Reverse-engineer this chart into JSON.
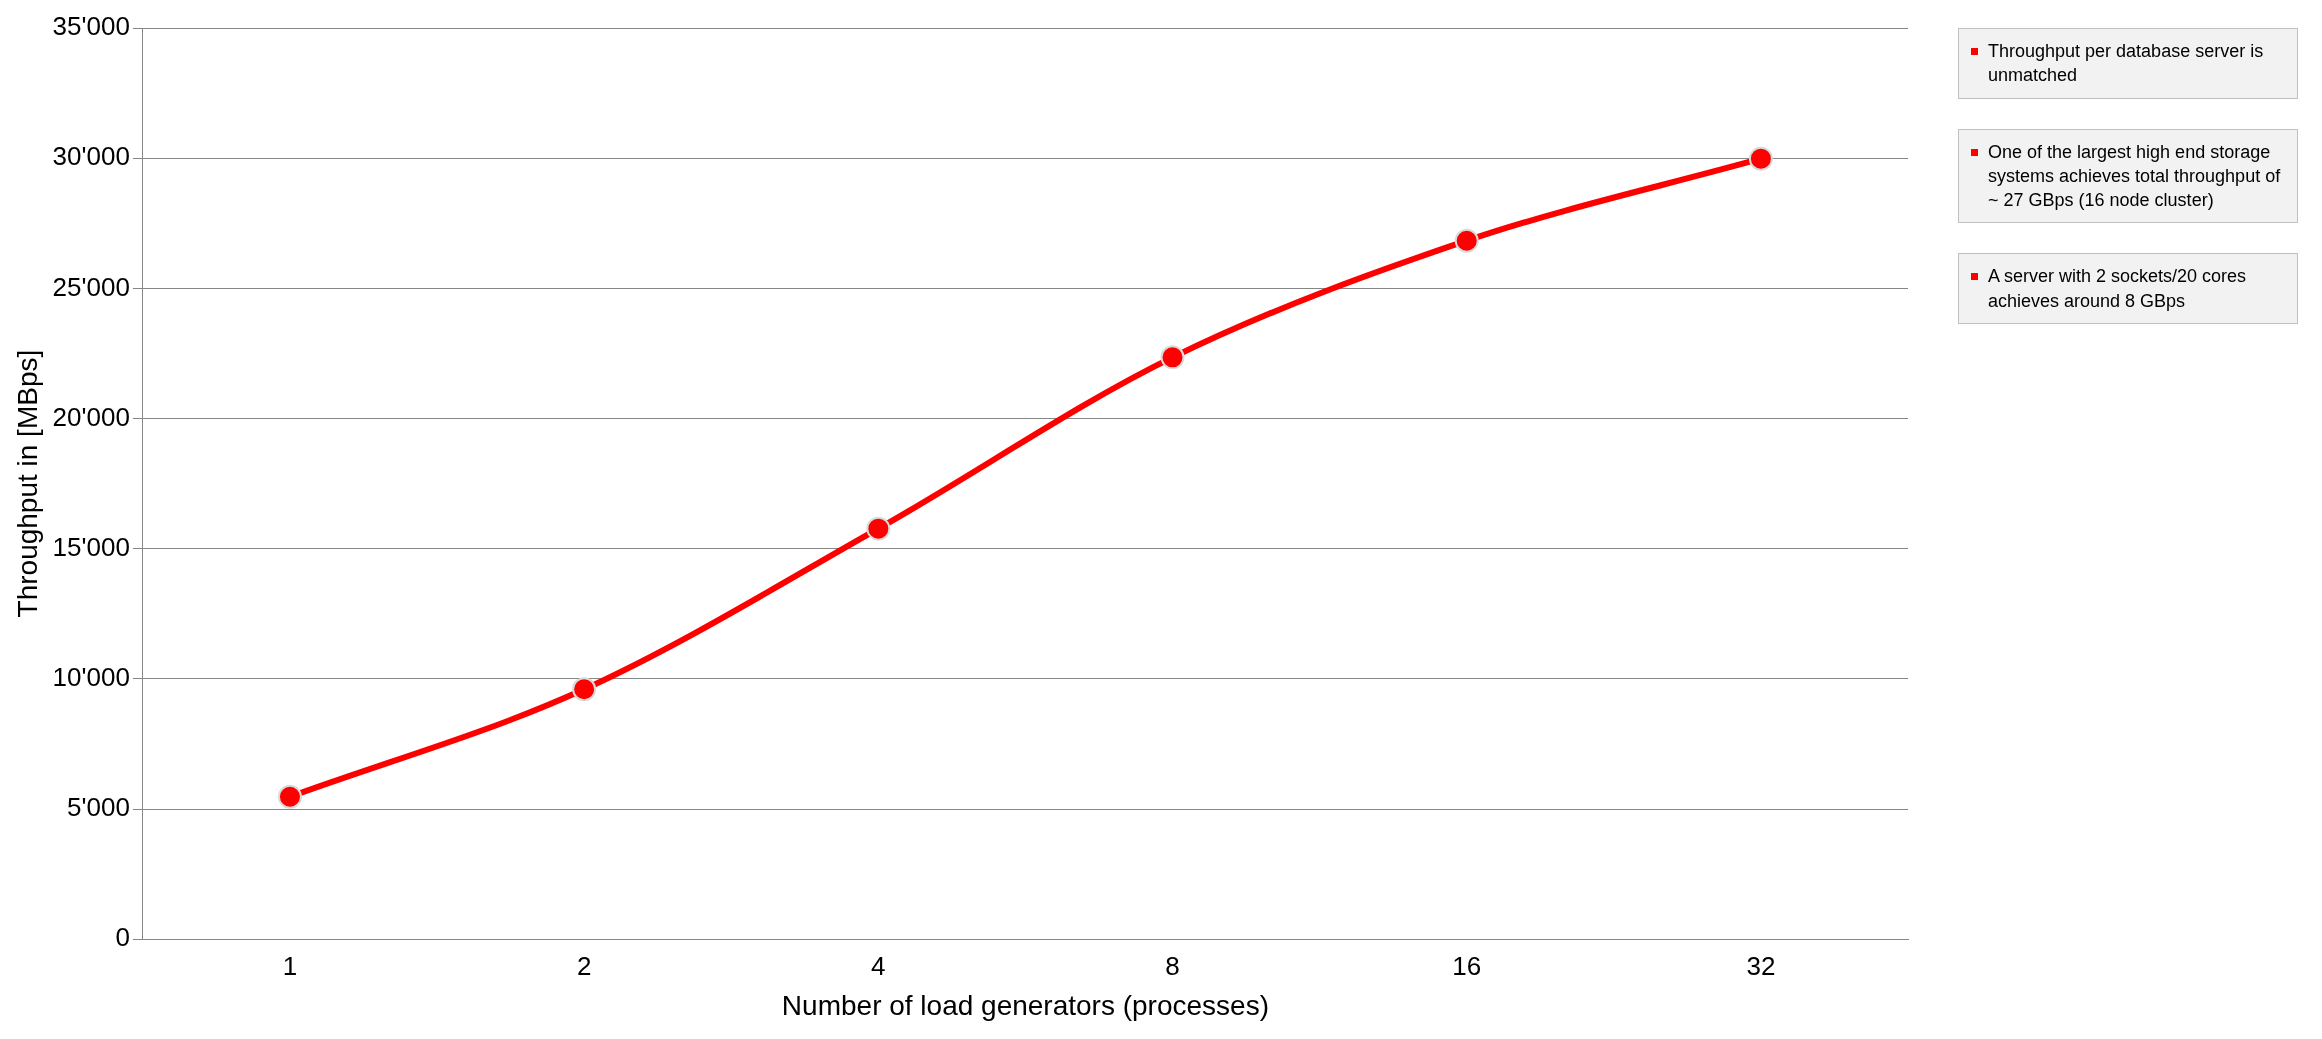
{
  "chart_data": {
    "type": "line",
    "xlabel": "Number of load generators (processes)",
    "ylabel": "Throughput in [MBps]",
    "categories": [
      "1",
      "2",
      "4",
      "8",
      "16",
      "32"
    ],
    "series": [
      {
        "color": "#ff0000",
        "values": [
          5470,
          9600,
          15770,
          22350,
          26830,
          29980
        ]
      }
    ],
    "ylim": [
      0,
      35000
    ],
    "yticks": [
      {
        "value": 0,
        "label": "0"
      },
      {
        "value": 5000,
        "label": "5'000"
      },
      {
        "value": 10000,
        "label": "10'000"
      },
      {
        "value": 15000,
        "label": "15'000"
      },
      {
        "value": 20000,
        "label": "20'000"
      },
      {
        "value": 25000,
        "label": "25'000"
      },
      {
        "value": 30000,
        "label": "30'000"
      },
      {
        "value": 35000,
        "label": "35'000"
      }
    ],
    "grid": "y",
    "legend": false,
    "marker": "circle",
    "line_style": "solid",
    "annotations": [
      "Throughput per database server is unmatched",
      "One of the largest high end storage systems achieves total throughput of ~ 27 GBps (16 node cluster)",
      "A server with 2 sockets/20 cores achieves around 8 GBps"
    ]
  }
}
